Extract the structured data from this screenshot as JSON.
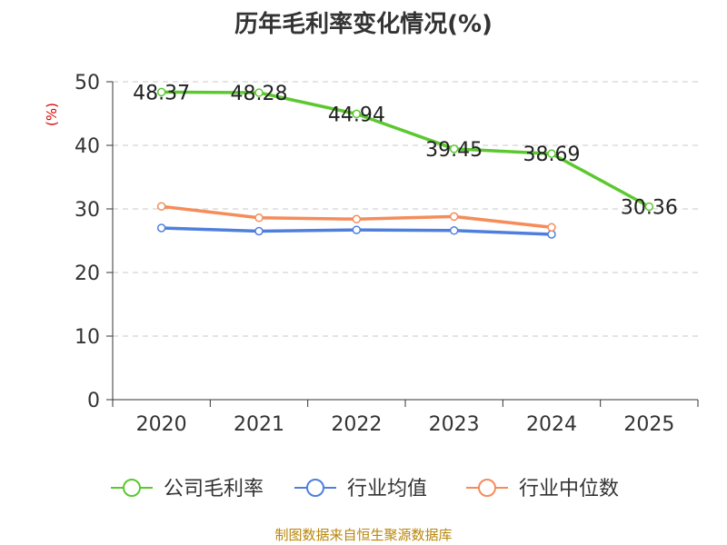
{
  "chart_data": {
    "type": "line",
    "title": "历年毛利率变化情况(%)",
    "ylabel": "(%)",
    "xlabel": "",
    "categories": [
      "2020",
      "2021",
      "2022",
      "2023",
      "2024",
      "2025"
    ],
    "ylim": [
      0,
      50
    ],
    "yticks": [
      "0",
      "10",
      "20",
      "30",
      "40",
      "50"
    ],
    "grid": "horizontal dashed",
    "legend_position": "bottom",
    "series": [
      {
        "name": "公司毛利率",
        "color": "#5cc82f",
        "values": [
          48.37,
          48.28,
          44.94,
          39.45,
          38.69,
          30.36
        ],
        "labels": [
          "48.37",
          "48.28",
          "44.94",
          "39.45",
          "38.69",
          "30.36"
        ]
      },
      {
        "name": "行业均值",
        "color": "#4f7fdd",
        "values": [
          27.0,
          26.5,
          26.7,
          26.6,
          26.0,
          null
        ]
      },
      {
        "name": "行业中位数",
        "color": "#f58c5a",
        "values": [
          30.4,
          28.6,
          28.4,
          28.8,
          27.1,
          null
        ]
      }
    ]
  },
  "source": "制图数据来自恒生聚源数据库"
}
